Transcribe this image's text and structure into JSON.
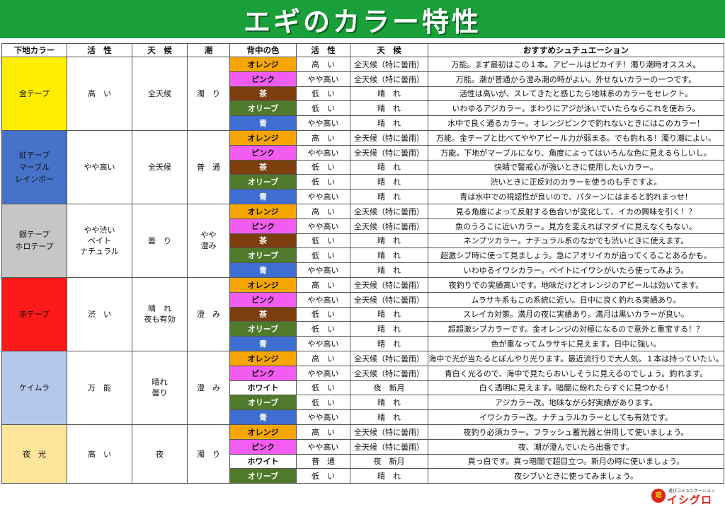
{
  "title": "エギのカラー特性",
  "headers": {
    "base_color": "下地カラー",
    "activity": "活　性",
    "weather": "天　候",
    "tide": "潮",
    "back_color": "背中の色",
    "activity2": "活　性",
    "weather2": "天　候",
    "situation": "おすすめシュチュエーション"
  },
  "groups": [
    {
      "base": [
        "金テープ"
      ],
      "base_color": "#ffee00",
      "activity": [
        "高　い"
      ],
      "weather": [
        "全天候"
      ],
      "tide": [
        "濁　り"
      ],
      "rows": [
        {
          "back": "オレンジ",
          "cls": "c-orange",
          "activity": "高　い",
          "weather": "全天候（特に曇雨）",
          "tip": "万能。まず最初はこの１本。アピールはピカイチ！濁り潮時オススメ。"
        },
        {
          "back": "ピンク",
          "cls": "c-pink",
          "activity": "やや高い",
          "weather": "全天候（特に曇雨）",
          "tip": "万能。潮が普通から澄み潮の時がよい。外せないカラーの一つです。"
        },
        {
          "back": "茶",
          "cls": "c-brown",
          "activity": "低　い",
          "weather": "晴　れ",
          "tip": "活性は高いが、スレてきたと感じたら地味系のカラーをセレクト。"
        },
        {
          "back": "オリーブ",
          "cls": "c-olive",
          "activity": "低　い",
          "weather": "晴　れ",
          "tip": "いわゆるアジカラー。まわりにアジが泳いでいたらならこれを使おう。"
        },
        {
          "back": "青",
          "cls": "c-blue",
          "activity": "やや高い",
          "weather": "晴　れ",
          "tip": "水中で良く通るカラー。オレンジピンクで釣れないときにはこのカラー！"
        }
      ]
    },
    {
      "base": [
        "虹テープ",
        "マーブル",
        "レインボー"
      ],
      "base_color": "#4673c9",
      "activity": [
        "やや高い"
      ],
      "weather": [
        "全天候"
      ],
      "tide": [
        "普　通"
      ],
      "rows": [
        {
          "back": "オレンジ",
          "cls": "c-orange",
          "activity": "高　い",
          "weather": "全天候（特に曇雨）",
          "tip": "万能。金テープと比べてややアピール力が弱まる。でも釣れる！濁り潮によい。"
        },
        {
          "back": "ピンク",
          "cls": "c-pink",
          "activity": "やや高い",
          "weather": "全天候（特に曇雨）",
          "tip": "万能。下地がマーブルになり、角度によってはいろんな色に見えるらしいし。"
        },
        {
          "back": "茶",
          "cls": "c-brown",
          "activity": "低　い",
          "weather": "晴　れ",
          "tip": "快晴で警戒心が強いときに使用したいカラー。"
        },
        {
          "back": "オリーブ",
          "cls": "c-olive",
          "activity": "低　い",
          "weather": "晴　れ",
          "tip": "渋いときに正反対のカラーを使うのも手ですよ。"
        },
        {
          "back": "青",
          "cls": "c-blue",
          "activity": "やや高い",
          "weather": "晴　れ",
          "tip": "青は水中での視認性が良いので、パターンにはまると釣れまっせ！"
        }
      ]
    },
    {
      "base": [
        "銀テープ",
        "ホロテープ"
      ],
      "base_color": "#c6c6c6",
      "activity": [
        "やや渋い",
        "ベイト",
        "ナチュラル"
      ],
      "weather": [
        "曇　り"
      ],
      "tide": [
        "やや",
        "澄み"
      ],
      "rows": [
        {
          "back": "オレンジ",
          "cls": "c-orange",
          "activity": "高　い",
          "weather": "全天候（特に曇雨）",
          "tip": "見る角度によって反射する色合いが変化して、イカの興味を引く！？"
        },
        {
          "back": "ピンク",
          "cls": "c-pink",
          "activity": "やや高い",
          "weather": "全天候（特に曇雨）",
          "tip": "魚のうろこに近いカラー。見方を変えればマダイに見えなくもない。"
        },
        {
          "back": "茶",
          "cls": "c-brown",
          "activity": "低　い",
          "weather": "晴　れ",
          "tip": "ネンブツカラー。ナチュラル系のなかでも渋いときに使えます。"
        },
        {
          "back": "オリーブ",
          "cls": "c-olive",
          "activity": "低　い",
          "weather": "晴　れ",
          "tip": "超激シブ時に使って見ましょう。急にアオリイカが追ってくることあるかも。"
        },
        {
          "back": "青",
          "cls": "c-blue",
          "activity": "やや高い",
          "weather": "晴　れ",
          "tip": "いわゆるイワシカラー。ベイトにイワシがいたら使ってみよう。"
        }
      ]
    },
    {
      "base": [
        "赤テープ"
      ],
      "base_color": "#ff1a1a",
      "activity": [
        "渋　い"
      ],
      "weather": [
        "晴　れ",
        "夜も有効"
      ],
      "tide": [
        "澄　み"
      ],
      "rows": [
        {
          "back": "オレンジ",
          "cls": "c-orange",
          "activity": "高　い",
          "weather": "全天候（特に曇雨）",
          "tip": "夜釣りでの実績高いです。地味だけどオレンジのアピールは効いてます。"
        },
        {
          "back": "ピンク",
          "cls": "c-pink",
          "activity": "やや高い",
          "weather": "全天候（特に曇雨）",
          "tip": "ムラサキ系もこの系統に近い。日中に良く釣れる実績あり。"
        },
        {
          "back": "茶",
          "cls": "c-brown",
          "activity": "低　い",
          "weather": "晴　れ",
          "tip": "スレイカ対策。満月の夜に実績あり。満月は黒いカラーが良い。"
        },
        {
          "back": "オリーブ",
          "cls": "c-olive",
          "activity": "低　い",
          "weather": "晴　れ",
          "tip": "超超激シブカラーです。金オレンジの対極になるので意外と重宝する！？"
        },
        {
          "back": "青",
          "cls": "c-blue",
          "activity": "やや高い",
          "weather": "晴　れ",
          "tip": "色が重なってムラサキに見えます。日中に強い。"
        }
      ]
    },
    {
      "base": [
        "ケイムラ"
      ],
      "base_color": "#b3c8ec",
      "activity": [
        "万　能"
      ],
      "weather": [
        "晴れ",
        "曇り"
      ],
      "tide": [
        "澄　み"
      ],
      "rows": [
        {
          "back": "オレンジ",
          "cls": "c-orange",
          "activity": "高　い",
          "weather": "全天候（特に曇雨）",
          "tip": "海中で光が当たるとぼんやり光ります。最近流行りで大人気。１本は持っていたい。"
        },
        {
          "back": "ピンク",
          "cls": "c-pink",
          "activity": "やや高い",
          "weather": "全天候（特に曇雨）",
          "tip": "青白く光るので、海中で見たらおいしそうに見えるのでしょう。釣れます。"
        },
        {
          "back": "ホワイト",
          "cls": "c-white",
          "activity": "低　い",
          "weather": "夜　新月",
          "tip": "白く透明に見えます。暗闇に紛れたらすぐに見つかる！"
        },
        {
          "back": "オリーブ",
          "cls": "c-olive",
          "activity": "低　い",
          "weather": "晴　れ",
          "tip": "アジカラー改。地味ながら好実績があります。"
        },
        {
          "back": "青",
          "cls": "c-blue",
          "activity": "やや高い",
          "weather": "晴　れ",
          "tip": "イワシカラー改。ナチュラルカラーとしても有効です。"
        }
      ]
    },
    {
      "base": [
        "夜　光"
      ],
      "base_color": "#ffe49c",
      "activity": [
        "高　い"
      ],
      "weather": [
        "夜"
      ],
      "tide": [
        "濁　り"
      ],
      "rows": [
        {
          "back": "オレンジ",
          "cls": "c-orange",
          "activity": "高　い",
          "weather": "全天候（特に曇雨）",
          "tip": "夜釣り必須カラー。フラッシュ蓄光器と併用して使いましょう。"
        },
        {
          "back": "ピンク",
          "cls": "c-pink",
          "activity": "やや高い",
          "weather": "全天候（特に曇雨）",
          "tip": "夜、潮が澄んでいたら出番です。"
        },
        {
          "back": "ホワイト",
          "cls": "c-white",
          "activity": "普　通",
          "weather": "夜　新月",
          "tip": "真っ白です。真っ暗闇で超目立つ。新月の時に使いましょう。"
        },
        {
          "back": "オリーブ",
          "cls": "c-olive",
          "activity": "低　い",
          "weather": "晴　れ",
          "tip": "夜シブいときに使ってみましょう。"
        }
      ]
    }
  ],
  "logo": {
    "small": "遊びコミュニケーション",
    "main": "イシグロ",
    "badge": "遊"
  }
}
